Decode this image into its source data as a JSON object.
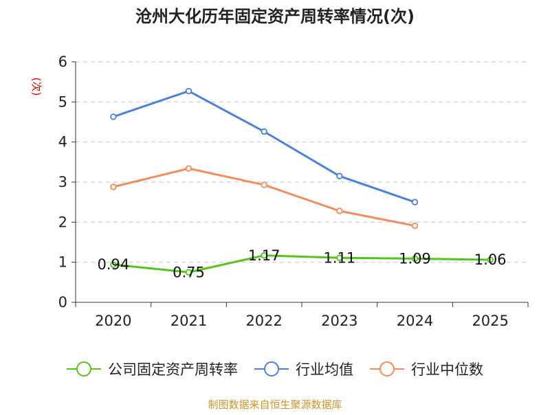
{
  "chart_data": {
    "type": "line",
    "title": "沧州大化历年固定资产周转率情况(次)",
    "ylabel": "(次)",
    "xlabel": "",
    "categories": [
      "2020",
      "2021",
      "2022",
      "2023",
      "2024",
      "2025"
    ],
    "ylim": [
      0,
      6
    ],
    "yticks": [
      "0",
      "1",
      "2",
      "3",
      "4",
      "5",
      "6"
    ],
    "grid": true,
    "legend_position": "bottom",
    "series": [
      {
        "name": "公司固定资产周转率",
        "color": "#52c41a",
        "values": [
          0.94,
          0.75,
          1.17,
          1.11,
          1.09,
          1.06
        ],
        "labels": [
          "0.94",
          "0.75",
          "1.17",
          "1.11",
          "1.09",
          "1.06"
        ],
        "show_labels": true
      },
      {
        "name": "行业均值",
        "color": "#4a7fdc",
        "values": [
          4.63,
          5.27,
          4.26,
          3.15,
          2.5,
          null
        ],
        "show_labels": false
      },
      {
        "name": "行业中位数",
        "color": "#f58b5a",
        "values": [
          2.88,
          3.34,
          2.93,
          2.28,
          1.91,
          null
        ],
        "show_labels": false
      }
    ],
    "source": "制图数据来自恒生聚源数据库",
    "colors": {
      "title": "#222222",
      "ylabel": "#cc0000",
      "source": "#c8962d",
      "grid": "#cccccc",
      "axis": "#333333"
    }
  }
}
